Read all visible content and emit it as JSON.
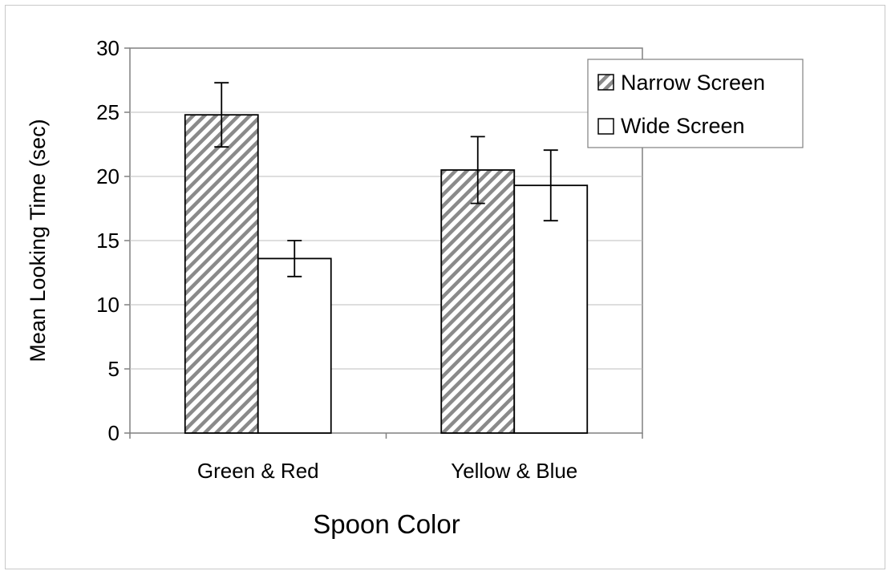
{
  "chart_data": {
    "type": "bar",
    "title": "",
    "xlabel": "Spoon Color",
    "ylabel": "Mean Looking Time (sec)",
    "categories": [
      "Green & Red",
      "Yellow & Blue"
    ],
    "ylim": [
      0,
      30
    ],
    "yticks": [
      0,
      5,
      10,
      15,
      20,
      25,
      30
    ],
    "grid": true,
    "legend_position": "top-right",
    "series": [
      {
        "name": "Narrow Screen",
        "pattern": "diagonal-hatch",
        "color": "#808080",
        "values": [
          24.8,
          20.5
        ],
        "error": [
          2.5,
          2.6
        ]
      },
      {
        "name": "Wide Screen",
        "pattern": "solid",
        "color": "#ffffff",
        "values": [
          13.6,
          19.3
        ],
        "error": [
          1.4,
          2.75
        ]
      }
    ]
  }
}
